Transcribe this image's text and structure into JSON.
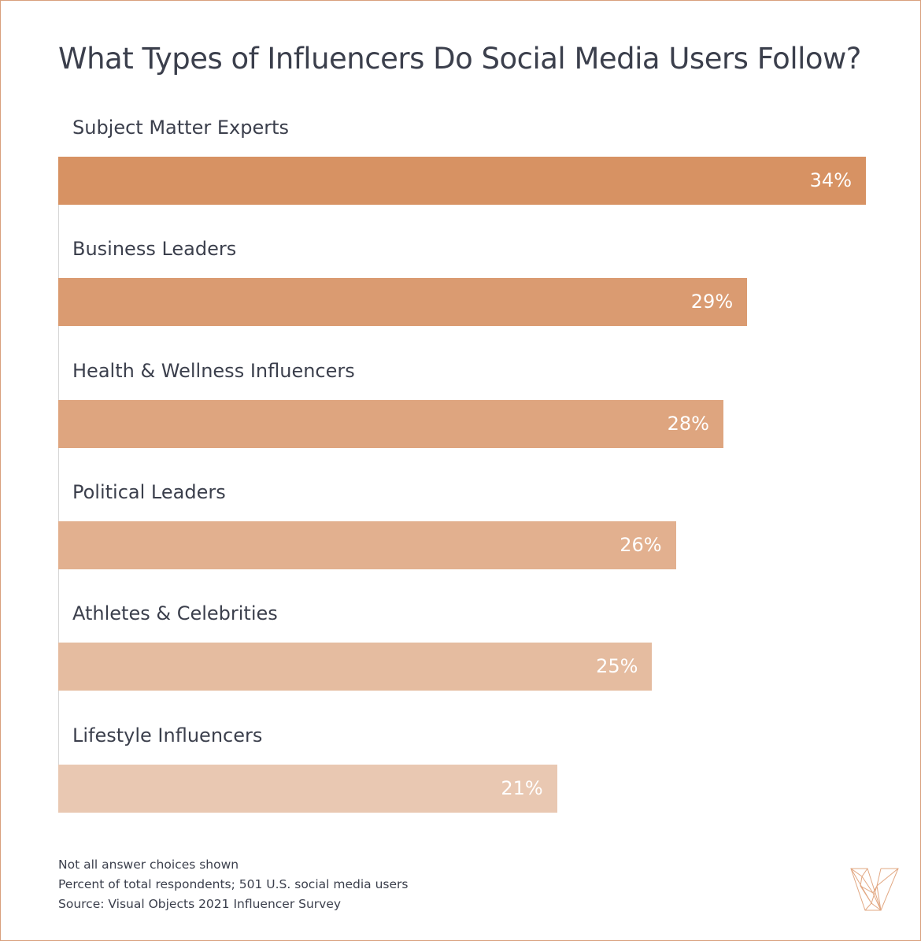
{
  "chart_data": {
    "type": "bar",
    "orientation": "horizontal",
    "title": "What Types of Influencers Do Social Media Users Follow?",
    "categories": [
      "Subject Matter Experts",
      "Business Leaders",
      "Health & Wellness Influencers",
      "Political Leaders",
      "Athletes & Celebrities",
      "Lifestyle Influencers"
    ],
    "values": [
      34,
      29,
      28,
      26,
      25,
      21
    ],
    "value_labels": [
      "34%",
      "29%",
      "28%",
      "26%",
      "25%",
      "21%"
    ],
    "colors": [
      "#d79263",
      "#da9b71",
      "#dea57f",
      "#e2b08f",
      "#e5bca0",
      "#e9c8b2"
    ],
    "xlim": [
      0,
      34
    ],
    "grid": false,
    "legend": "none"
  },
  "notes": [
    "Not all answer choices shown",
    "Percent of total respondents; 501 U.S. social media users",
    "Source: Visual Objects 2021 Influencer Survey"
  ],
  "logo_icon": "visual-objects-v-logo",
  "border_color": "#d9a07c"
}
